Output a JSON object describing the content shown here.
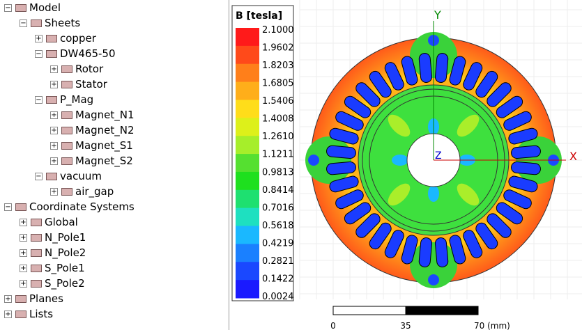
{
  "tree": [
    {
      "label": "Model",
      "children": [
        {
          "label": "Sheets",
          "children": [
            {
              "label": "copper"
            },
            {
              "label": "DW465-50",
              "children": [
                {
                  "label": "Rotor"
                },
                {
                  "label": "Stator"
                }
              ]
            },
            {
              "label": "P_Mag",
              "children": [
                {
                  "label": "Magnet_N1"
                },
                {
                  "label": "Magnet_N2"
                },
                {
                  "label": "Magnet_S1"
                },
                {
                  "label": "Magnet_S2"
                }
              ]
            },
            {
              "label": "vacuum",
              "children": [
                {
                  "label": "air_gap"
                }
              ]
            }
          ]
        }
      ]
    },
    {
      "label": "Coordinate Systems",
      "children": [
        {
          "label": "Global"
        },
        {
          "label": "N_Pole1"
        },
        {
          "label": "N_Pole2"
        },
        {
          "label": "S_Pole1"
        },
        {
          "label": "S_Pole2"
        }
      ]
    },
    {
      "label": "Planes"
    },
    {
      "label": "Lists"
    }
  ],
  "legend": {
    "title": "B [tesla]",
    "labels": [
      "2.1000",
      "1.9602",
      "1.8203",
      "1.6805",
      "1.5406",
      "1.4008",
      "1.2610",
      "1.1211",
      "0.9813",
      "0.8414",
      "0.7016",
      "0.5618",
      "0.4219",
      "0.2821",
      "0.1422",
      "0.0024"
    ],
    "colors": [
      "#ff1a1a",
      "#ff4a1a",
      "#ff7f1a",
      "#ffae1a",
      "#ffdd1a",
      "#ddf01a",
      "#a6ee2a",
      "#55e030",
      "#1ee01e",
      "#1ee070",
      "#1ee0c0",
      "#1ab8ff",
      "#1a80ff",
      "#1a48ff",
      "#1a1aff"
    ]
  },
  "axes": {
    "y": "Y",
    "x": "X",
    "z": "Z"
  },
  "scale_bar": {
    "labels": [
      "0",
      "35",
      "70 (mm)"
    ]
  }
}
